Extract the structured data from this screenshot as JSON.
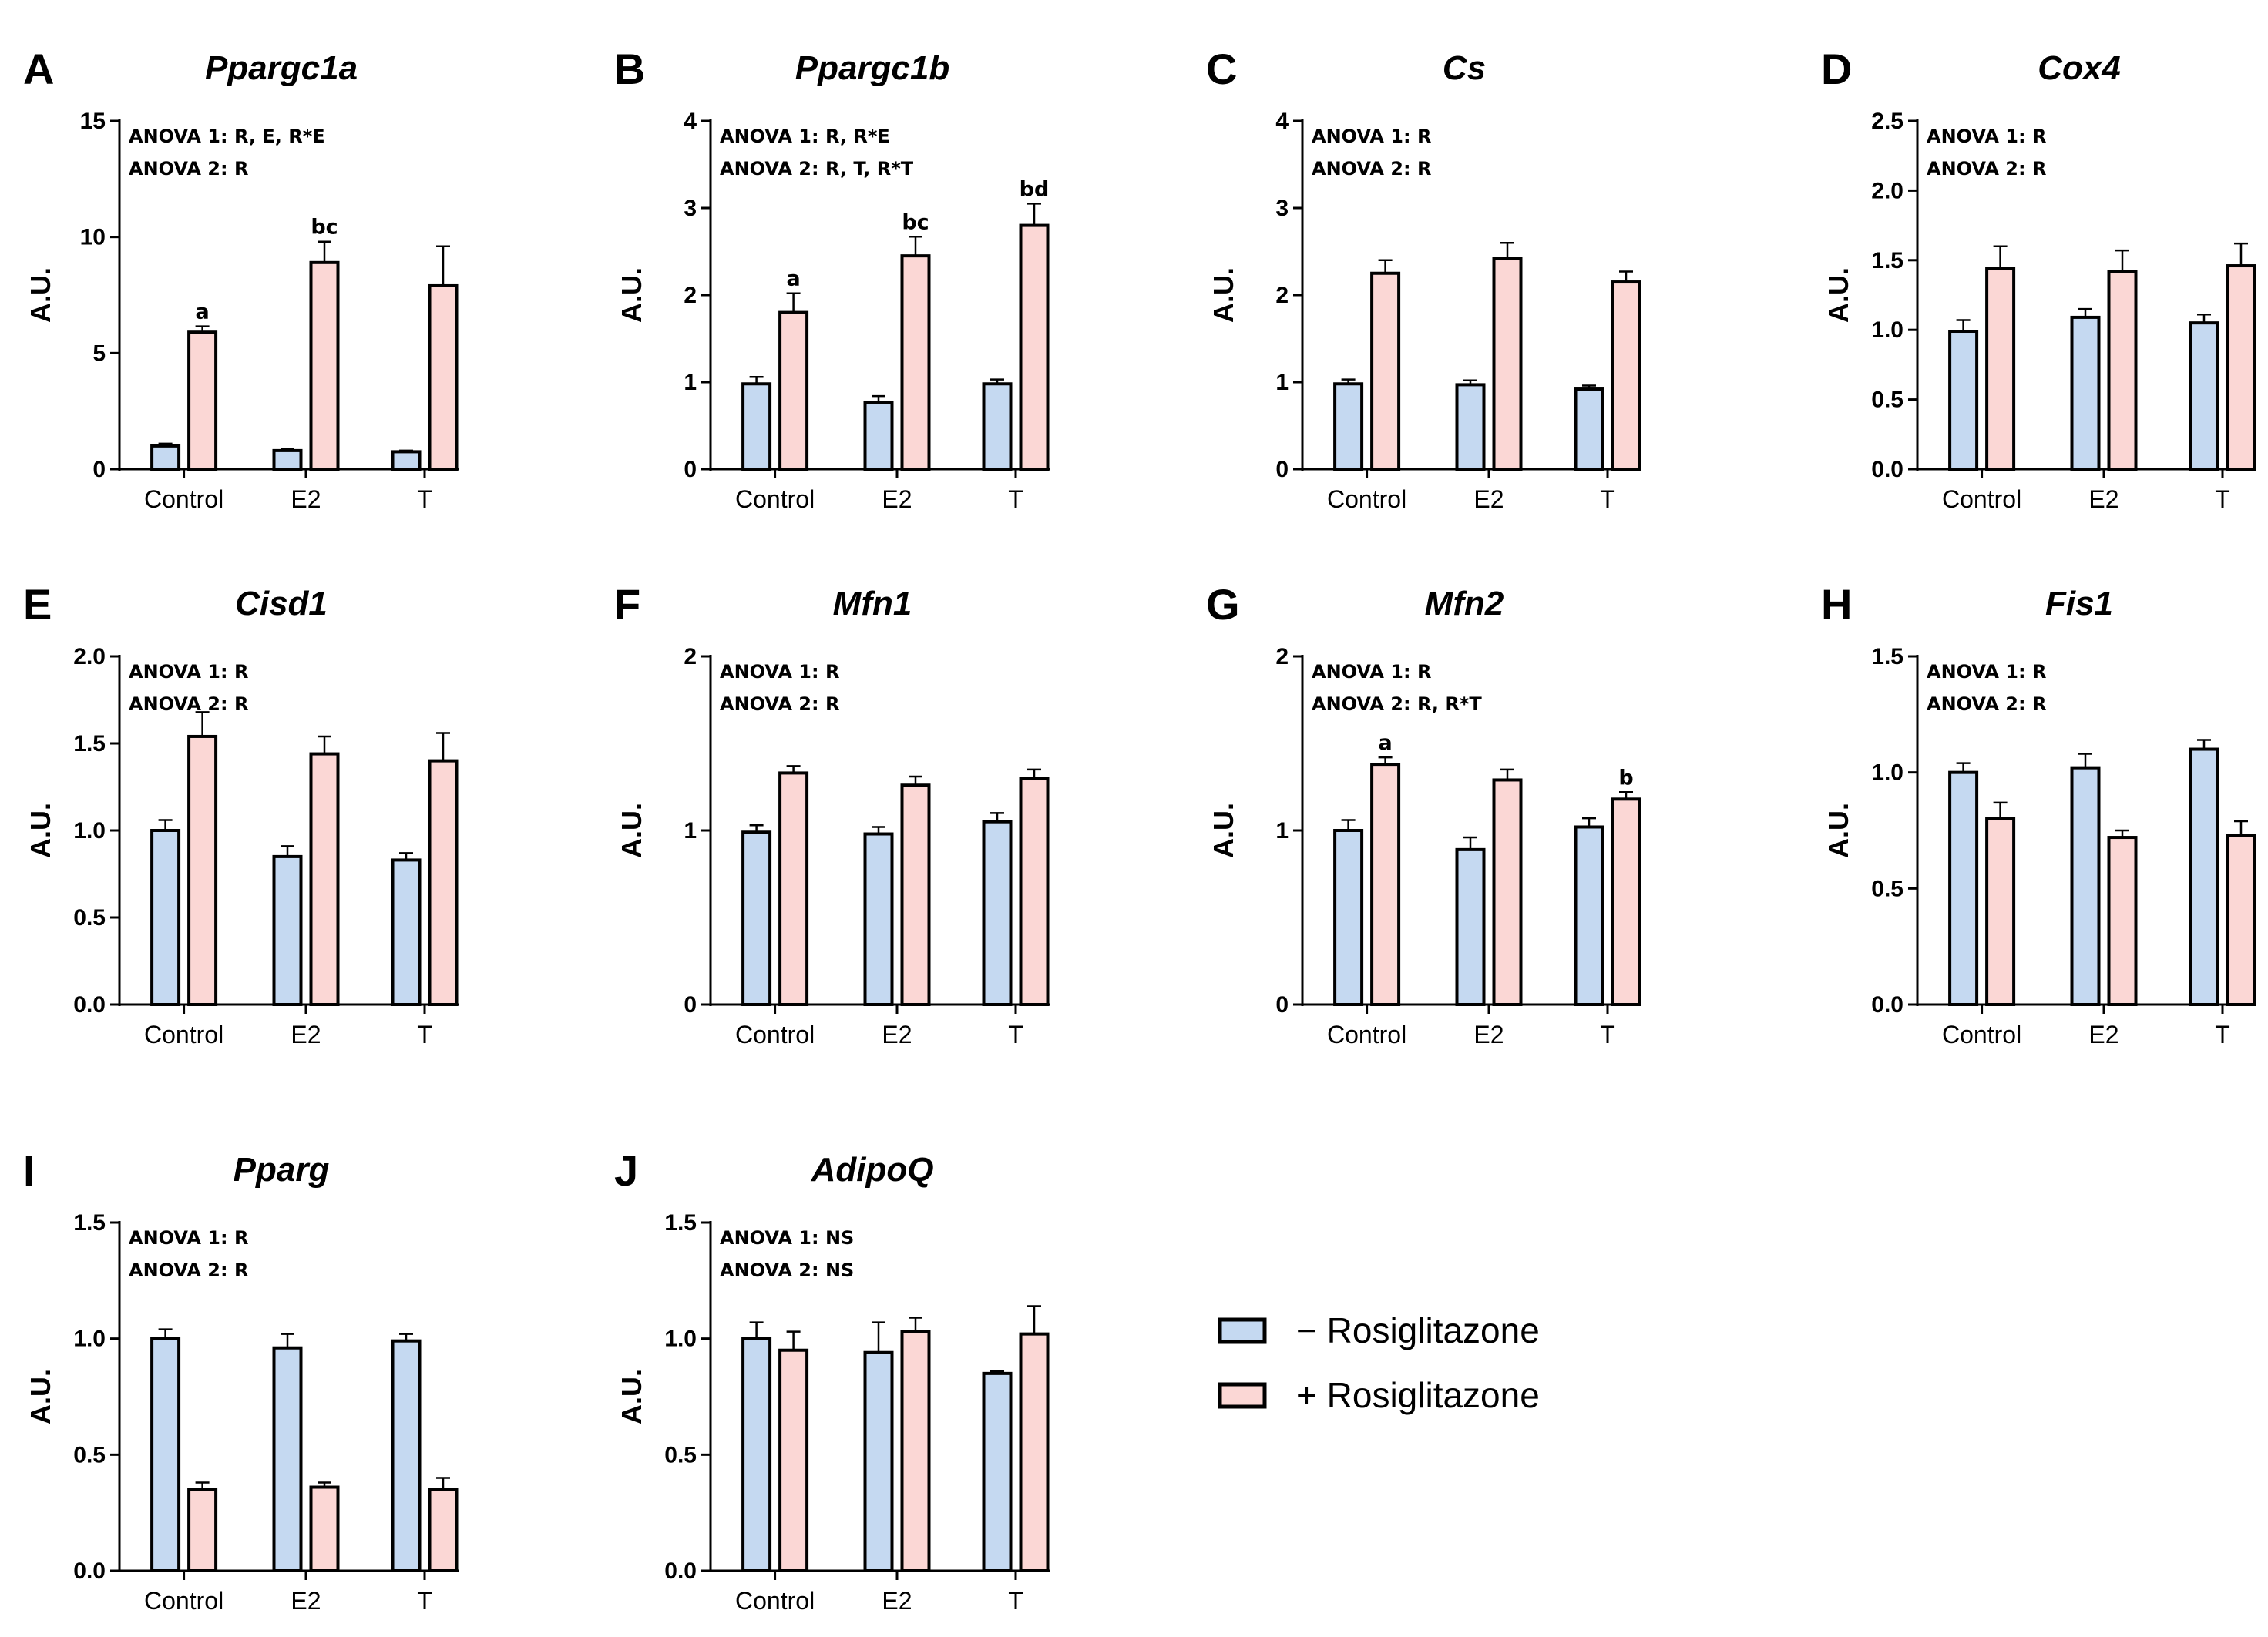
{
  "colors": {
    "minus": "#c5d9f1",
    "plus": "#fbd7d5",
    "stroke": "#000000"
  },
  "legend": [
    {
      "label": "− Rosiglitazone",
      "color": "#c5d9f1"
    },
    {
      "label": "+ Rosiglitazone",
      "color": "#fbd7d5"
    }
  ],
  "chart_data": [
    {
      "letter": "A",
      "title": "Ppargc1a",
      "type": "bar",
      "ylabel": "A.U.",
      "ylim": [
        0,
        15
      ],
      "yticks": [
        "0",
        "5",
        "10",
        "15"
      ],
      "categories": [
        "Control",
        "E2",
        "T"
      ],
      "anova": [
        "ANOVA 1: R, E, R*E",
        "ANOVA 2: R"
      ],
      "series": [
        {
          "name": "− Rosiglitazone",
          "values": [
            1.0,
            0.8,
            0.75
          ],
          "errors": [
            0.1,
            0.08,
            0.05
          ],
          "letters": [
            "",
            "",
            ""
          ]
        },
        {
          "name": "+ Rosiglitazone",
          "values": [
            5.9,
            8.9,
            7.9
          ],
          "errors": [
            0.25,
            0.9,
            1.7
          ],
          "letters": [
            "a",
            "bc",
            ""
          ]
        }
      ]
    },
    {
      "letter": "B",
      "title": "Ppargc1b",
      "type": "bar",
      "ylabel": "A.U.",
      "ylim": [
        0,
        4
      ],
      "yticks": [
        "0",
        "1",
        "2",
        "3",
        "4"
      ],
      "categories": [
        "Control",
        "E2",
        "T"
      ],
      "anova": [
        "ANOVA 1: R, R*E",
        "ANOVA 2: R, T, R*T"
      ],
      "series": [
        {
          "name": "− Rosiglitazone",
          "values": [
            0.98,
            0.77,
            0.98
          ],
          "errors": [
            0.08,
            0.07,
            0.05
          ],
          "letters": [
            "",
            "",
            ""
          ]
        },
        {
          "name": "+ Rosiglitazone",
          "values": [
            1.8,
            2.45,
            2.8
          ],
          "errors": [
            0.22,
            0.22,
            0.25
          ],
          "letters": [
            "a",
            "bc",
            "bd"
          ]
        }
      ]
    },
    {
      "letter": "C",
      "title": "Cs",
      "type": "bar",
      "ylabel": "A.U.",
      "ylim": [
        0,
        4
      ],
      "yticks": [
        "0",
        "1",
        "2",
        "3",
        "4"
      ],
      "categories": [
        "Control",
        "E2",
        "T"
      ],
      "anova": [
        "ANOVA 1: R",
        "ANOVA 2: R"
      ],
      "series": [
        {
          "name": "− Rosiglitazone",
          "values": [
            0.98,
            0.97,
            0.92
          ],
          "errors": [
            0.05,
            0.05,
            0.04
          ],
          "letters": [
            "",
            "",
            ""
          ]
        },
        {
          "name": "+ Rosiglitazone",
          "values": [
            2.25,
            2.42,
            2.15
          ],
          "errors": [
            0.15,
            0.18,
            0.12
          ],
          "letters": [
            "",
            "",
            ""
          ]
        }
      ]
    },
    {
      "letter": "D",
      "title": "Cox4",
      "type": "bar",
      "ylabel": "A.U.",
      "ylim": [
        0,
        2.5
      ],
      "yticks": [
        "0.0",
        "0.5",
        "1.0",
        "1.5",
        "2.0",
        "2.5"
      ],
      "categories": [
        "Control",
        "E2",
        "T"
      ],
      "anova": [
        "ANOVA 1: R",
        "ANOVA 2: R"
      ],
      "series": [
        {
          "name": "− Rosiglitazone",
          "values": [
            0.99,
            1.09,
            1.05
          ],
          "errors": [
            0.08,
            0.06,
            0.06
          ],
          "letters": [
            "",
            "",
            ""
          ]
        },
        {
          "name": "+ Rosiglitazone",
          "values": [
            1.44,
            1.42,
            1.46
          ],
          "errors": [
            0.16,
            0.15,
            0.16
          ],
          "letters": [
            "",
            "",
            ""
          ]
        }
      ]
    },
    {
      "letter": "E",
      "title": "Cisd1",
      "type": "bar",
      "ylabel": "A.U.",
      "ylim": [
        0,
        2.0
      ],
      "yticks": [
        "0.0",
        "0.5",
        "1.0",
        "1.5",
        "2.0"
      ],
      "categories": [
        "Control",
        "E2",
        "T"
      ],
      "anova": [
        "ANOVA 1: R",
        "ANOVA 2: R"
      ],
      "series": [
        {
          "name": "− Rosiglitazone",
          "values": [
            1.0,
            0.85,
            0.83
          ],
          "errors": [
            0.06,
            0.06,
            0.04
          ],
          "letters": [
            "",
            "",
            ""
          ]
        },
        {
          "name": "+ Rosiglitazone",
          "values": [
            1.54,
            1.44,
            1.4
          ],
          "errors": [
            0.14,
            0.1,
            0.16
          ],
          "letters": [
            "",
            "",
            ""
          ]
        }
      ]
    },
    {
      "letter": "F",
      "title": "Mfn1",
      "type": "bar",
      "ylabel": "A.U.",
      "ylim": [
        0,
        2
      ],
      "yticks": [
        "0",
        "1",
        "2"
      ],
      "categories": [
        "Control",
        "E2",
        "T"
      ],
      "anova": [
        "ANOVA 1: R",
        "ANOVA 2: R"
      ],
      "series": [
        {
          "name": "− Rosiglitazone",
          "values": [
            0.99,
            0.98,
            1.05
          ],
          "errors": [
            0.04,
            0.04,
            0.05
          ],
          "letters": [
            "",
            "",
            ""
          ]
        },
        {
          "name": "+ Rosiglitazone",
          "values": [
            1.33,
            1.26,
            1.3
          ],
          "errors": [
            0.04,
            0.05,
            0.05
          ],
          "letters": [
            "",
            "",
            ""
          ]
        }
      ]
    },
    {
      "letter": "G",
      "title": "Mfn2",
      "type": "bar",
      "ylabel": "A.U.",
      "ylim": [
        0,
        2
      ],
      "yticks": [
        "0",
        "1",
        "2"
      ],
      "categories": [
        "Control",
        "E2",
        "T"
      ],
      "anova": [
        "ANOVA 1: R",
        "ANOVA 2: R, R*T"
      ],
      "series": [
        {
          "name": "− Rosiglitazone",
          "values": [
            1.0,
            0.89,
            1.02
          ],
          "errors": [
            0.06,
            0.07,
            0.05
          ],
          "letters": [
            "",
            "",
            ""
          ]
        },
        {
          "name": "+ Rosiglitazone",
          "values": [
            1.38,
            1.29,
            1.18
          ],
          "errors": [
            0.04,
            0.06,
            0.04
          ],
          "letters": [
            "a",
            "",
            "b"
          ]
        }
      ]
    },
    {
      "letter": "H",
      "title": "Fis1",
      "type": "bar",
      "ylabel": "A.U.",
      "ylim": [
        0,
        1.5
      ],
      "yticks": [
        "0.0",
        "0.5",
        "1.0",
        "1.5"
      ],
      "categories": [
        "Control",
        "E2",
        "T"
      ],
      "anova": [
        "ANOVA 1: R",
        "ANOVA 2: R"
      ],
      "series": [
        {
          "name": "− Rosiglitazone",
          "values": [
            1.0,
            1.02,
            1.1
          ],
          "errors": [
            0.04,
            0.06,
            0.04
          ],
          "letters": [
            "",
            "",
            ""
          ]
        },
        {
          "name": "+ Rosiglitazone",
          "values": [
            0.8,
            0.72,
            0.73
          ],
          "errors": [
            0.07,
            0.03,
            0.06
          ],
          "letters": [
            "",
            "",
            ""
          ]
        }
      ]
    },
    {
      "letter": "I",
      "title": "Pparg",
      "type": "bar",
      "ylabel": "A.U.",
      "ylim": [
        0,
        1.5
      ],
      "yticks": [
        "0.0",
        "0.5",
        "1.0",
        "1.5"
      ],
      "categories": [
        "Control",
        "E2",
        "T"
      ],
      "anova": [
        "ANOVA 1: R",
        "ANOVA 2: R"
      ],
      "series": [
        {
          "name": "− Rosiglitazone",
          "values": [
            1.0,
            0.96,
            0.99
          ],
          "errors": [
            0.04,
            0.06,
            0.03
          ],
          "letters": [
            "",
            "",
            ""
          ]
        },
        {
          "name": "+ Rosiglitazone",
          "values": [
            0.35,
            0.36,
            0.35
          ],
          "errors": [
            0.03,
            0.02,
            0.05
          ],
          "letters": [
            "",
            "",
            ""
          ]
        }
      ]
    },
    {
      "letter": "J",
      "title": "AdipoQ",
      "type": "bar",
      "ylabel": "A.U.",
      "ylim": [
        0,
        1.5
      ],
      "yticks": [
        "0.0",
        "0.5",
        "1.0",
        "1.5"
      ],
      "categories": [
        "Control",
        "E2",
        "T"
      ],
      "anova": [
        "ANOVA 1: NS",
        "ANOVA 2: NS"
      ],
      "series": [
        {
          "name": "− Rosiglitazone",
          "values": [
            1.0,
            0.94,
            0.85
          ],
          "errors": [
            0.07,
            0.13,
            0.01
          ],
          "letters": [
            "",
            "",
            ""
          ]
        },
        {
          "name": "+ Rosiglitazone",
          "values": [
            0.95,
            1.03,
            1.02
          ],
          "errors": [
            0.08,
            0.06,
            0.12
          ],
          "letters": [
            "",
            "",
            ""
          ]
        }
      ]
    }
  ]
}
